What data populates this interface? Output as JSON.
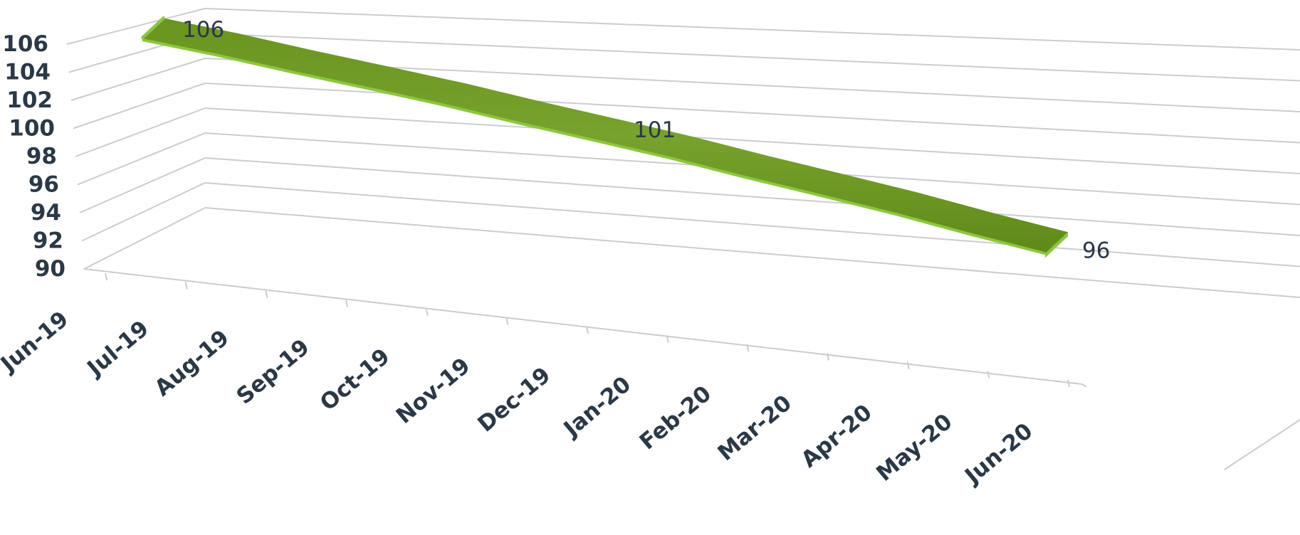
{
  "chart_data": {
    "type": "line",
    "style": "3d-ribbon",
    "title": "",
    "xlabel": "",
    "ylabel": "",
    "categories": [
      "Jun-19",
      "Jul-19",
      "Aug-19",
      "Sep-19",
      "Oct-19",
      "Nov-19",
      "Dec-19",
      "Jan-20",
      "Feb-20",
      "Mar-20",
      "Apr-20",
      "May-20",
      "Jun-20"
    ],
    "series": [
      {
        "values": [
          106,
          105.2,
          104.3,
          103.5,
          102.7,
          101.8,
          101,
          100.2,
          99.3,
          98.5,
          97.7,
          96.8,
          96
        ],
        "data_labels": [
          {
            "index": 0,
            "text": "106"
          },
          {
            "index": 6,
            "text": "101"
          },
          {
            "index": 12,
            "text": "96"
          }
        ]
      }
    ],
    "ylim": [
      90,
      106
    ],
    "yticks": [
      "90",
      "92",
      "94",
      "96",
      "98",
      "100",
      "102",
      "104",
      "106"
    ],
    "grid": true,
    "legend": "none",
    "colors": {
      "ribbon_top": "#6f9a26",
      "ribbon_edge": "#8cc63f",
      "grid": "#c9cdd1",
      "text": "#2b3846"
    }
  }
}
